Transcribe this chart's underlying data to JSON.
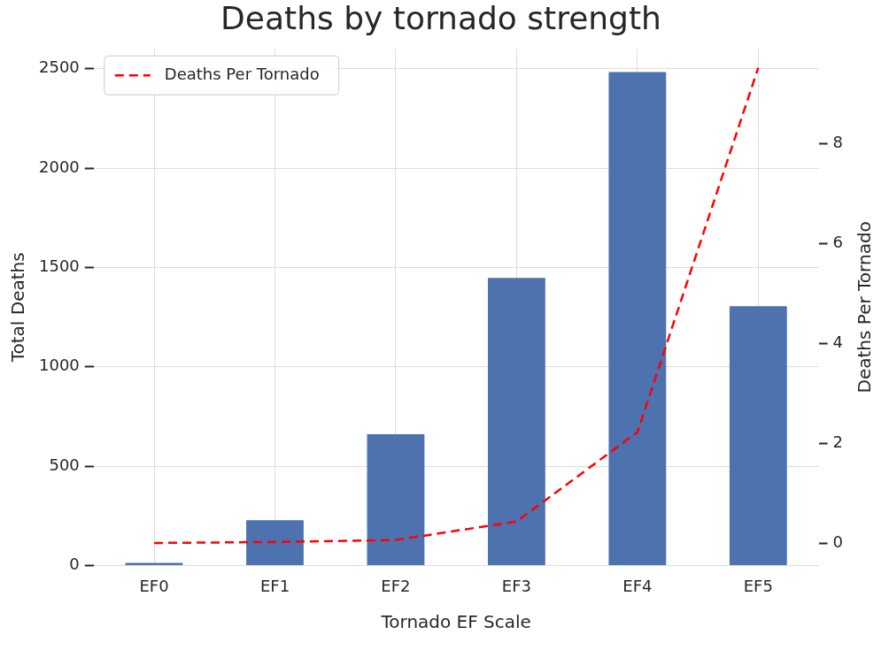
{
  "chart_data": {
    "type": "bar",
    "title": "Deaths by tornado strength",
    "xlabel": "Tornado EF Scale",
    "ylabel": "Total Deaths",
    "y2label": "Deaths Per Tornado",
    "categories": [
      "EF0",
      "EF1",
      "EF2",
      "EF3",
      "EF4",
      "EF5"
    ],
    "series": [
      {
        "color": "#4c72b0",
        "values": [
          13,
          228,
          660,
          1447,
          2483,
          1305
        ]
      },
      {
        "type": "line",
        "name": "Deaths Per Tornado",
        "axis": "y2",
        "color": "#ff0000",
        "values": [
          0,
          0.02,
          0.06,
          0.43,
          2.22,
          9.52
        ]
      }
    ],
    "ylim": [
      0,
      2600
    ],
    "yticks": [
      0,
      500,
      1000,
      1500,
      2000,
      2500
    ],
    "y2lim": [
      -0.45,
      9.9
    ],
    "y2ticks": [
      0,
      2,
      4,
      6,
      8
    ],
    "grid": true,
    "legend": "top left",
    "line_style": "dashed"
  }
}
